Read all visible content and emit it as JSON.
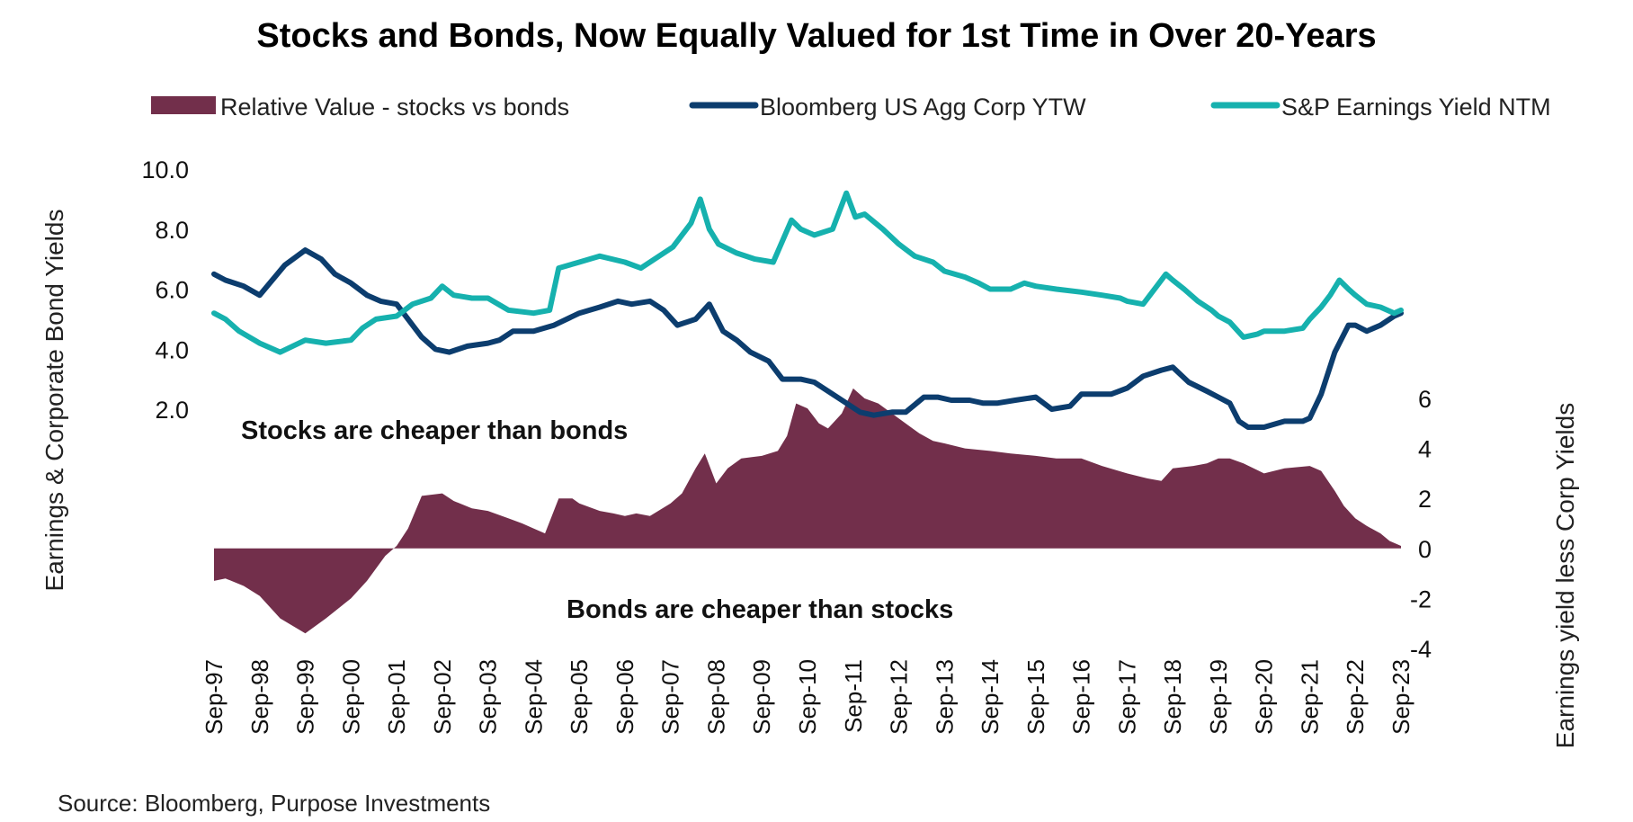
{
  "chart_data": {
    "type": "line+area",
    "title": "Stocks and Bonds, Now Equally Valued for 1st Time in Over 20-Years",
    "legend": [
      {
        "name": "Relative Value - stocks vs bonds",
        "color": "#722F4B",
        "kind": "area"
      },
      {
        "name": "Bloomberg US Agg Corp YTW",
        "color": "#0C3D6E",
        "kind": "line"
      },
      {
        "name": "S&P Earnings Yield NTM",
        "color": "#16B1AE",
        "kind": "line"
      }
    ],
    "left_axis": {
      "label": "Earnings & Corporate Bond Yields",
      "ticks": [
        "10.0",
        "8.0",
        "6.0",
        "4.0",
        "2.0"
      ],
      "tick_values": [
        10,
        8,
        6,
        4,
        2
      ],
      "range": [
        2,
        10
      ]
    },
    "right_axis": {
      "label": "Earnings yield  less  Corp Yields",
      "ticks": [
        "6",
        "4",
        "2",
        "0",
        "-2",
        "-4"
      ],
      "tick_values": [
        6,
        4,
        2,
        0,
        -2,
        -4
      ],
      "range": [
        -4,
        6
      ]
    },
    "x_ticks": [
      "Sep-97",
      "Sep-98",
      "Sep-99",
      "Sep-00",
      "Sep-01",
      "Sep-02",
      "Sep-03",
      "Sep-04",
      "Sep-05",
      "Sep-06",
      "Sep-07",
      "Sep-08",
      "Sep-09",
      "Sep-10",
      "Sep-11",
      "Sep-12",
      "Sep-13",
      "Sep-14",
      "Sep-15",
      "Sep-16",
      "Sep-17",
      "Sep-18",
      "Sep-19",
      "Sep-20",
      "Sep-21",
      "Sep-22",
      "Sep-23"
    ],
    "x_years": [
      1997.75,
      1998.75,
      1999.75,
      2000.75,
      2001.75,
      2002.75,
      2003.75,
      2004.75,
      2005.75,
      2006.75,
      2007.75,
      2008.75,
      2009.75,
      2010.75,
      2011.75,
      2012.75,
      2013.75,
      2014.75,
      2015.75,
      2016.75,
      2017.75,
      2018.75,
      2019.75,
      2020.75,
      2021.75,
      2022.75,
      2023.75
    ],
    "series": [
      {
        "name": "Bloomberg US Agg Corp YTW",
        "axis": "left",
        "x": [
          1997.75,
          1998.0,
          1998.4,
          1998.75,
          1999.3,
          1999.75,
          2000.1,
          2000.4,
          2000.75,
          2001.1,
          2001.4,
          2001.75,
          2002.0,
          2002.3,
          2002.6,
          2002.9,
          2003.3,
          2003.75,
          2004.0,
          2004.3,
          2004.75,
          2005.2,
          2005.75,
          2006.2,
          2006.6,
          2006.9,
          2007.3,
          2007.6,
          2007.9,
          2008.3,
          2008.6,
          2008.9,
          2009.2,
          2009.5,
          2009.9,
          2010.2,
          2010.6,
          2010.9,
          2011.3,
          2011.6,
          2011.9,
          2012.2,
          2012.6,
          2012.9,
          2013.3,
          2013.6,
          2013.9,
          2014.3,
          2014.6,
          2014.9,
          2015.3,
          2015.75,
          2016.1,
          2016.5,
          2016.75,
          2017.1,
          2017.4,
          2017.75,
          2018.1,
          2018.5,
          2018.75,
          2019.1,
          2019.5,
          2019.75,
          2020.0,
          2020.2,
          2020.4,
          2020.75,
          2021.2,
          2021.6,
          2021.75,
          2022.0,
          2022.3,
          2022.6,
          2022.75,
          2023.0,
          2023.3,
          2023.6,
          2023.75
        ],
        "values": [
          6.5,
          6.3,
          6.1,
          5.8,
          6.8,
          7.3,
          7.0,
          6.5,
          6.2,
          5.8,
          5.6,
          5.5,
          5.0,
          4.4,
          4.0,
          3.9,
          4.1,
          4.2,
          4.3,
          4.6,
          4.6,
          4.8,
          5.2,
          5.4,
          5.6,
          5.5,
          5.6,
          5.3,
          4.8,
          5.0,
          5.5,
          4.6,
          4.3,
          3.9,
          3.6,
          3.0,
          3.0,
          2.9,
          2.5,
          2.2,
          1.9,
          1.8,
          1.9,
          1.9,
          2.4,
          2.4,
          2.3,
          2.3,
          2.2,
          2.2,
          2.3,
          2.4,
          2.0,
          2.1,
          2.5,
          2.5,
          2.5,
          2.7,
          3.1,
          3.3,
          3.4,
          2.9,
          2.6,
          2.4,
          2.2,
          1.6,
          1.4,
          1.4,
          1.6,
          1.6,
          1.7,
          2.5,
          3.9,
          4.8,
          4.8,
          4.6,
          4.8,
          5.1,
          5.2
        ]
      },
      {
        "name": "S&P Earnings Yield NTM",
        "axis": "left",
        "x": [
          1997.75,
          1998.0,
          1998.3,
          1998.75,
          1999.2,
          1999.75,
          2000.2,
          2000.75,
          2001.0,
          2001.3,
          2001.75,
          2002.1,
          2002.5,
          2002.75,
          2003.0,
          2003.4,
          2003.75,
          2004.2,
          2004.75,
          2005.1,
          2005.3,
          2005.75,
          2006.2,
          2006.75,
          2007.1,
          2007.5,
          2007.8,
          2008.2,
          2008.4,
          2008.6,
          2008.8,
          2009.2,
          2009.6,
          2010.0,
          2010.4,
          2010.6,
          2010.9,
          2011.3,
          2011.6,
          2011.8,
          2012.0,
          2012.4,
          2012.75,
          2013.1,
          2013.5,
          2013.75,
          2014.2,
          2014.5,
          2014.75,
          2015.2,
          2015.5,
          2015.75,
          2016.2,
          2016.75,
          2017.2,
          2017.6,
          2017.75,
          2018.1,
          2018.4,
          2018.6,
          2018.75,
          2019.0,
          2019.3,
          2019.6,
          2019.75,
          2020.0,
          2020.3,
          2020.6,
          2020.75,
          2021.2,
          2021.6,
          2021.75,
          2022.0,
          2022.2,
          2022.4,
          2022.6,
          2022.75,
          2023.0,
          2023.3,
          2023.6,
          2023.75
        ],
        "values": [
          5.2,
          5.0,
          4.6,
          4.2,
          3.9,
          4.3,
          4.2,
          4.3,
          4.7,
          5.0,
          5.1,
          5.5,
          5.7,
          6.1,
          5.8,
          5.7,
          5.7,
          5.3,
          5.2,
          5.3,
          6.7,
          6.9,
          7.1,
          6.9,
          6.7,
          7.1,
          7.4,
          8.2,
          9.0,
          8.0,
          7.5,
          7.2,
          7.0,
          6.9,
          8.3,
          8.0,
          7.8,
          8.0,
          9.2,
          8.4,
          8.5,
          8.0,
          7.5,
          7.1,
          6.9,
          6.6,
          6.4,
          6.2,
          6.0,
          6.0,
          6.2,
          6.1,
          6.0,
          5.9,
          5.8,
          5.7,
          5.6,
          5.5,
          6.1,
          6.5,
          6.3,
          6.0,
          5.6,
          5.3,
          5.1,
          4.9,
          4.4,
          4.5,
          4.6,
          4.6,
          4.7,
          5.0,
          5.4,
          5.8,
          6.3,
          6.0,
          5.8,
          5.5,
          5.4,
          5.2,
          5.3
        ]
      },
      {
        "name": "Relative Value - stocks vs bonds",
        "axis": "right",
        "x": [
          1997.75,
          1998.0,
          1998.4,
          1998.75,
          1999.2,
          1999.75,
          2000.2,
          2000.75,
          2001.1,
          2001.5,
          2001.75,
          2002.0,
          2002.3,
          2002.75,
          2003.0,
          2003.4,
          2003.75,
          2004.2,
          2004.5,
          2004.75,
          2005.0,
          2005.3,
          2005.6,
          2005.75,
          2006.2,
          2006.5,
          2006.75,
          2007.0,
          2007.3,
          2007.75,
          2008.0,
          2008.3,
          2008.5,
          2008.75,
          2009.0,
          2009.3,
          2009.75,
          2010.1,
          2010.3,
          2010.5,
          2010.75,
          2011.0,
          2011.2,
          2011.5,
          2011.75,
          2012.0,
          2012.3,
          2012.75,
          2013.2,
          2013.5,
          2013.75,
          2014.2,
          2014.75,
          2015.2,
          2015.75,
          2016.2,
          2016.75,
          2017.2,
          2017.75,
          2018.2,
          2018.5,
          2018.75,
          2019.2,
          2019.5,
          2019.75,
          2020.0,
          2020.3,
          2020.75,
          2021.2,
          2021.75,
          2022.0,
          2022.3,
          2022.5,
          2022.75,
          2023.0,
          2023.3,
          2023.5,
          2023.75
        ],
        "values": [
          -1.3,
          -1.2,
          -1.5,
          -1.9,
          -2.8,
          -3.4,
          -2.8,
          -2.0,
          -1.3,
          -0.3,
          0.1,
          0.8,
          2.1,
          2.2,
          1.9,
          1.6,
          1.5,
          1.2,
          1.0,
          0.8,
          0.6,
          2.0,
          2.0,
          1.8,
          1.5,
          1.4,
          1.3,
          1.4,
          1.3,
          1.8,
          2.2,
          3.2,
          3.8,
          2.6,
          3.2,
          3.6,
          3.7,
          3.9,
          4.5,
          5.8,
          5.6,
          5.0,
          4.8,
          5.4,
          6.4,
          6.0,
          5.8,
          5.2,
          4.6,
          4.3,
          4.2,
          4.0,
          3.9,
          3.8,
          3.7,
          3.6,
          3.6,
          3.3,
          3.0,
          2.8,
          2.7,
          3.2,
          3.3,
          3.4,
          3.6,
          3.6,
          3.4,
          3.0,
          3.2,
          3.3,
          3.1,
          2.3,
          1.7,
          1.2,
          0.9,
          0.6,
          0.3,
          0.1
        ]
      }
    ],
    "annotations": {
      "upper": "Stocks are cheaper than bonds",
      "lower": "Bonds are cheaper than stocks"
    },
    "source": "Source: Bloomberg, Purpose Investments"
  }
}
